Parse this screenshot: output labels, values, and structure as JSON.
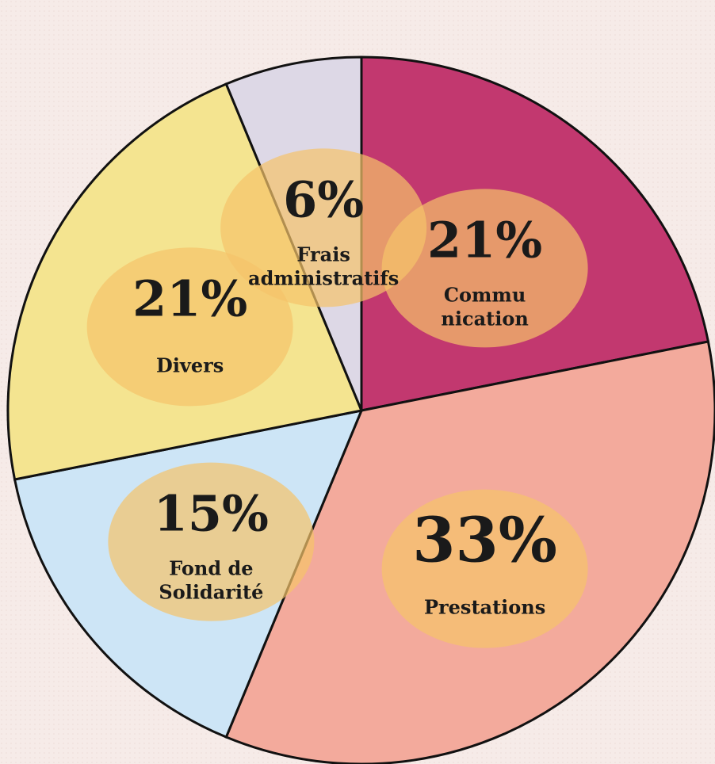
{
  "chart_data": {
    "type": "pie",
    "categories": [
      "Commu\nnication",
      "Prestations",
      "Fond de\nSolidarité",
      "Divers",
      "Frais\nadministratifs"
    ],
    "values": [
      21,
      33,
      15,
      21,
      6
    ],
    "value_labels": [
      "21%",
      "33%",
      "15%",
      "21%",
      "6%"
    ],
    "colors": [
      "#c2386f",
      "#f3aa9c",
      "#cde5f6",
      "#f4e490",
      "#ddd8e6"
    ]
  }
}
